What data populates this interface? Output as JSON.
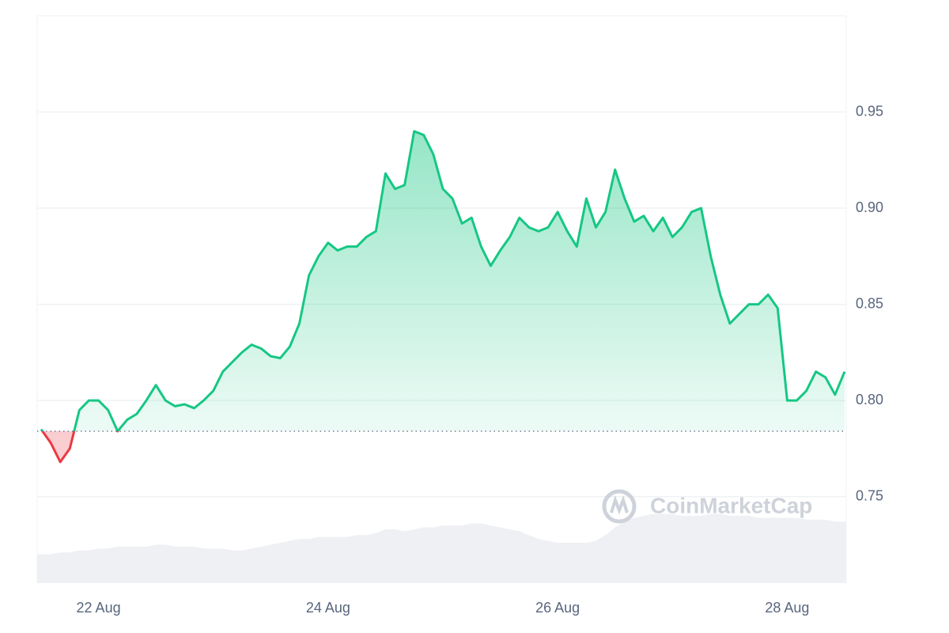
{
  "chart_data": {
    "type": "line",
    "categories": [
      null,
      null,
      null,
      null,
      null,
      null,
      "22 Aug",
      null,
      null,
      null,
      null,
      null,
      null,
      null,
      null,
      null,
      null,
      null,
      null,
      null,
      null,
      null,
      null,
      null,
      null,
      null,
      null,
      null,
      null,
      null,
      "24 Aug",
      null,
      null,
      null,
      null,
      null,
      null,
      null,
      null,
      null,
      null,
      null,
      null,
      null,
      null,
      null,
      null,
      null,
      null,
      null,
      null,
      null,
      null,
      null,
      "26 Aug",
      null,
      null,
      null,
      null,
      null,
      null,
      null,
      null,
      null,
      null,
      null,
      null,
      null,
      null,
      null,
      null,
      null,
      null,
      null,
      null,
      null,
      null,
      null,
      "28 Aug",
      null,
      null,
      null,
      null,
      null,
      null
    ],
    "values": [
      0.785,
      0.778,
      0.768,
      0.775,
      0.795,
      0.8,
      0.8,
      0.795,
      0.784,
      0.79,
      0.793,
      0.8,
      0.808,
      0.8,
      0.797,
      0.798,
      0.796,
      0.8,
      0.805,
      0.815,
      0.82,
      0.825,
      0.829,
      0.827,
      0.823,
      0.822,
      0.828,
      0.84,
      0.865,
      0.875,
      0.882,
      0.878,
      0.88,
      0.88,
      0.885,
      0.888,
      0.918,
      0.91,
      0.912,
      0.94,
      0.938,
      0.928,
      0.91,
      0.905,
      0.892,
      0.895,
      0.88,
      0.87,
      0.878,
      0.885,
      0.895,
      0.89,
      0.888,
      0.89,
      0.898,
      0.888,
      0.88,
      0.905,
      0.89,
      0.898,
      0.92,
      0.905,
      0.893,
      0.896,
      0.888,
      0.895,
      0.885,
      0.89,
      0.898,
      0.9,
      0.875,
      0.855,
      0.84,
      0.845,
      0.85,
      0.85,
      0.855,
      0.848,
      0.8,
      0.8,
      0.805,
      0.815,
      0.812,
      0.803,
      0.815
    ],
    "color": "#16c784",
    "below_color": "#ea3943",
    "baseline": 0.784,
    "volume": {
      "color": "#eef0f3",
      "values": [
        0.72,
        0.72,
        0.721,
        0.721,
        0.722,
        0.722,
        0.723,
        0.723,
        0.724,
        0.724,
        0.724,
        0.724,
        0.725,
        0.725,
        0.724,
        0.724,
        0.724,
        0.723,
        0.723,
        0.723,
        0.722,
        0.722,
        0.723,
        0.724,
        0.725,
        0.726,
        0.727,
        0.728,
        0.728,
        0.729,
        0.729,
        0.729,
        0.729,
        0.73,
        0.73,
        0.731,
        0.733,
        0.733,
        0.732,
        0.733,
        0.734,
        0.734,
        0.735,
        0.735,
        0.735,
        0.736,
        0.736,
        0.735,
        0.734,
        0.733,
        0.732,
        0.73,
        0.728,
        0.727,
        0.726,
        0.726,
        0.726,
        0.726,
        0.727,
        0.73,
        0.734,
        0.737,
        0.739,
        0.74,
        0.741,
        0.741,
        0.741,
        0.74,
        0.74,
        0.74,
        0.741,
        0.741,
        0.74,
        0.74,
        0.74,
        0.739,
        0.739,
        0.739,
        0.739,
        0.739,
        0.738,
        0.738,
        0.738,
        0.737,
        0.737
      ]
    },
    "watermark": "CoinMarketCap",
    "ylim": [
      0.705,
      1.0
    ],
    "yticks": [
      0.75,
      {
        "value": 0.8,
        "label": "0.80"
      },
      0.85,
      {
        "value": 0.9,
        "label": "0.90"
      },
      0.95
    ],
    "grid": true
  }
}
